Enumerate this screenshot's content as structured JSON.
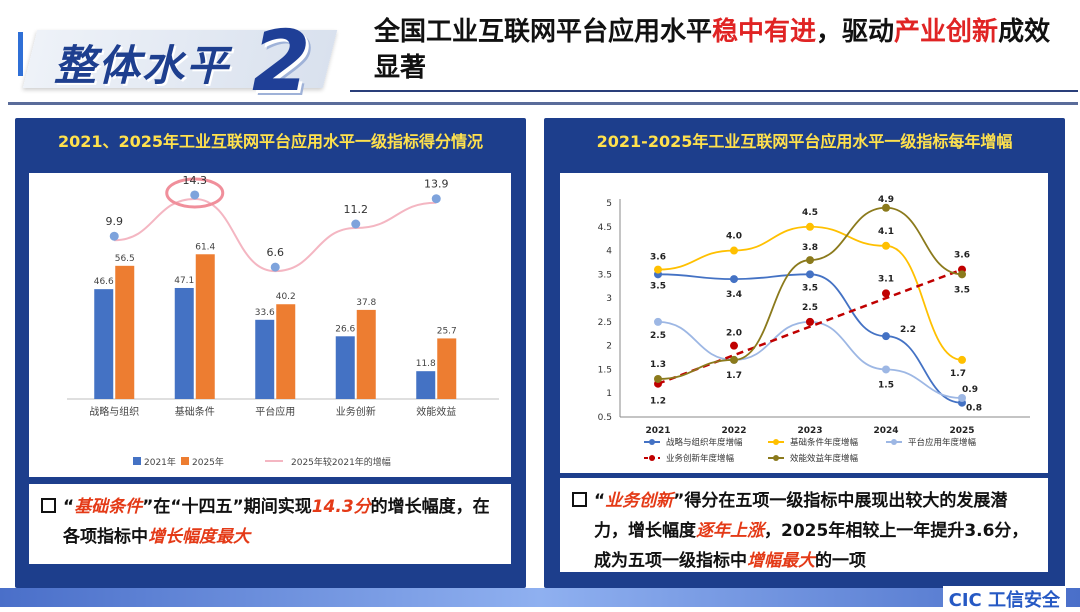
{
  "header": {
    "section_title": "整体水平",
    "section_number": "2",
    "headline_parts": [
      {
        "text": "全国工业互联网平台应用水平",
        "red": false
      },
      {
        "text": "稳中有进",
        "red": true
      },
      {
        "text": "，驱动",
        "red": false
      },
      {
        "text": "产业创新",
        "red": true
      },
      {
        "text": "成效显著",
        "red": false
      }
    ]
  },
  "left_panel": {
    "title": "2021、2025年工业互联网平台应用水平一级指标得分情况",
    "legend": {
      "a": "2021年",
      "b": "2025年",
      "line": "2025年较2021年的增幅"
    },
    "note_parts": [
      {
        "text": "“",
        "hl": false
      },
      {
        "text": "基础条件",
        "hl": true
      },
      {
        "text": "”在“十四五”期间实现",
        "hl": false
      },
      {
        "text": "14.3分",
        "hl": true
      },
      {
        "text": "的增长幅度，在各项指标中",
        "hl": false
      },
      {
        "text": "增长幅度最大",
        "hl": true
      }
    ]
  },
  "right_panel": {
    "title": "2021-2025年工业互联网平台应用水平一级指标每年增幅",
    "note_parts": [
      {
        "text": "“",
        "hl": false
      },
      {
        "text": "业务创新",
        "hl": true
      },
      {
        "text": "”得分在五项一级指标中展现出较大的发展潜力，增长幅度",
        "hl": false
      },
      {
        "text": "逐年上涨",
        "hl": true
      },
      {
        "text": "，2025年相较上一年提升3.6分，成为五项一级指标中",
        "hl": false
      },
      {
        "text": "增幅最大",
        "hl": true
      },
      {
        "text": "的一项",
        "hl": false
      }
    ]
  },
  "chart_data": [
    {
      "type": "bar",
      "categories": [
        "战略与组织",
        "基础条件",
        "平台应用",
        "业务创新",
        "效能效益"
      ],
      "series": [
        {
          "name": "2021年",
          "values": [
            46.6,
            47.1,
            33.6,
            26.6,
            11.8
          ],
          "color": "#4472c4"
        },
        {
          "name": "2025年",
          "values": [
            56.5,
            61.4,
            40.2,
            37.8,
            25.7
          ],
          "color": "#ed7d31"
        }
      ],
      "line_series": {
        "name": "2025年较2021年的增幅",
        "values": [
          9.9,
          14.3,
          6.6,
          11.2,
          13.9
        ],
        "color": "#f4b6c2"
      },
      "highlight_index": 1,
      "ylim": [
        0,
        70
      ],
      "grid": false,
      "legend": "bottom"
    },
    {
      "type": "line",
      "x": [
        "2021",
        "2022",
        "2023",
        "2024",
        "2025"
      ],
      "yticks": [
        "5",
        "4.5",
        "4",
        "3.5",
        "3",
        "2.5",
        "2",
        "1.5",
        "1",
        "0.5"
      ],
      "ylim": [
        0.5,
        5
      ],
      "series": [
        {
          "name": "战略与组织年度增幅",
          "values": [
            3.5,
            3.4,
            3.5,
            2.2,
            0.8
          ],
          "color": "#4472c4"
        },
        {
          "name": "基础条件年度增幅",
          "values": [
            3.6,
            4.0,
            4.5,
            4.1,
            1.7
          ],
          "color": "#ffc000"
        },
        {
          "name": "平台应用年度增幅",
          "values": [
            2.5,
            1.7,
            2.5,
            1.5,
            0.9
          ],
          "color": "#9db7e4"
        },
        {
          "name": "业务创新年度增幅",
          "values": [
            1.2,
            2.0,
            2.5,
            3.1,
            3.6
          ],
          "color": "#c00000",
          "dashed": true
        },
        {
          "name": "效能效益年度增幅",
          "values": [
            1.3,
            1.7,
            3.8,
            4.9,
            3.5
          ],
          "color": "#8b7a1c"
        }
      ],
      "data_labels": [
        {
          "x": 0,
          "text": "3.6",
          "v": 3.6,
          "dy": -10
        },
        {
          "x": 0,
          "text": "3.5",
          "v": 3.5,
          "dy": 14
        },
        {
          "x": 0,
          "text": "2.5",
          "v": 2.5,
          "dy": 16
        },
        {
          "x": 0,
          "text": "1.3",
          "v": 1.3,
          "dy": -12
        },
        {
          "x": 0,
          "text": "1.2",
          "v": 1.2,
          "dy": 20
        },
        {
          "x": 1,
          "text": "4.0",
          "v": 4.0,
          "dy": -12
        },
        {
          "x": 1,
          "text": "3.4",
          "v": 3.4,
          "dy": 18
        },
        {
          "x": 1,
          "text": "2.0",
          "v": 2.0,
          "dy": -10
        },
        {
          "x": 1,
          "text": "1.7",
          "v": 1.7,
          "dy": 18
        },
        {
          "x": 2,
          "text": "4.5",
          "v": 4.5,
          "dy": -12
        },
        {
          "x": 2,
          "text": "3.8",
          "v": 3.8,
          "dy": -10
        },
        {
          "x": 2,
          "text": "3.5",
          "v": 3.5,
          "dy": 16
        },
        {
          "x": 2,
          "text": "2.5",
          "v": 2.5,
          "dy": -12
        },
        {
          "x": 3,
          "text": "4.9",
          "v": 4.9,
          "dy": -6
        },
        {
          "x": 3,
          "text": "4.1",
          "v": 4.1,
          "dy": -12
        },
        {
          "x": 3,
          "text": "3.1",
          "v": 3.1,
          "dy": -12
        },
        {
          "x": 3,
          "text": "2.2",
          "v": 2.2,
          "dy": -4,
          "dx": 22
        },
        {
          "x": 3,
          "text": "1.5",
          "v": 1.5,
          "dy": 18
        },
        {
          "x": 4,
          "text": "3.6",
          "v": 3.6,
          "dy": -12
        },
        {
          "x": 4,
          "text": "3.5",
          "v": 3.5,
          "dy": 18
        },
        {
          "x": 4,
          "text": "1.7",
          "v": 1.7,
          "dy": 16,
          "dx": -4
        },
        {
          "x": 4,
          "text": "0.9",
          "v": 0.9,
          "dy": -6,
          "dx": 8
        },
        {
          "x": 4,
          "text": "0.8",
          "v": 0.8,
          "dy": 8,
          "dx": 12
        }
      ],
      "legend": "bottom"
    }
  ],
  "footer": {
    "brand": "CIC 工信安全"
  }
}
